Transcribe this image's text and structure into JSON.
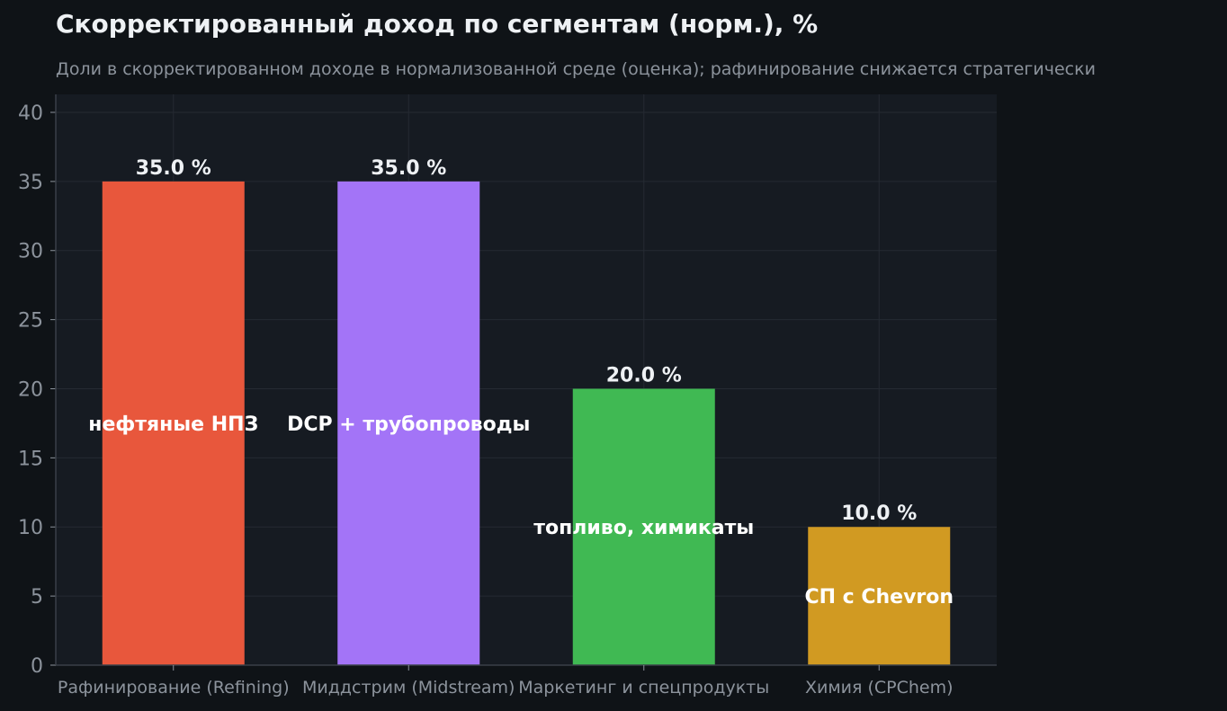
{
  "chart_data": {
    "type": "bar",
    "title": "Скорректированный доход по сегментам (норм.), %",
    "subtitle": "Доли в скорректированном доходе в нормализованной среде (оценка); рафинирование снижается стратегически",
    "xlabel": "",
    "ylabel": "",
    "categories": [
      "Рафинирование (Refining)",
      "Миддстрим (Midstream)",
      "Маркетинг и спецпродукты",
      "Химия (CPChem)"
    ],
    "values": [
      35.0,
      35.0,
      20.0,
      10.0
    ],
    "value_labels": [
      "35.0 %",
      "35.0 %",
      "20.0 %",
      "10.0 %"
    ],
    "inner_labels": [
      "нефтяные НПЗ",
      "DCP + трубопроводы",
      "топливо, химикаты",
      "СП с Chevron"
    ],
    "colors": [
      "#e8573c",
      "#a374f7",
      "#40b953",
      "#d19a22"
    ],
    "ylim": [
      0,
      41.3
    ],
    "yticks": [
      0,
      5,
      10,
      15,
      20,
      25,
      30,
      35,
      40
    ],
    "grid": true,
    "legend": "none"
  },
  "theme": {
    "background": "#0f1317",
    "plot_background": "#161b22",
    "grid_color": "#252b33",
    "tick_color": "#8c939c",
    "title_color": "#eef1f4"
  }
}
